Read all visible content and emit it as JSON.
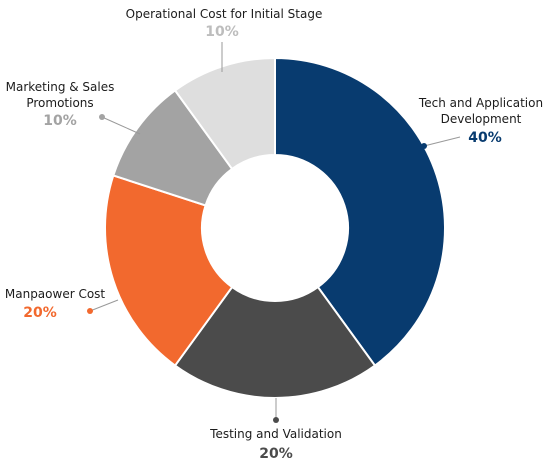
{
  "chart_data": {
    "type": "donut",
    "categories": [
      "Tech and Application Development",
      "Testing and Validation",
      "Manpaower Cost",
      "Marketing & Sales Promotions",
      "Operational Cost for Initial Stage"
    ],
    "values": [
      40,
      20,
      20,
      10,
      10
    ],
    "value_labels": [
      "40%",
      "20%",
      "20%",
      "10%",
      "10%"
    ],
    "colors": [
      "#083b6f",
      "#4b4b4b",
      "#f2692e",
      "#a3a3a3",
      "#dedede"
    ]
  }
}
